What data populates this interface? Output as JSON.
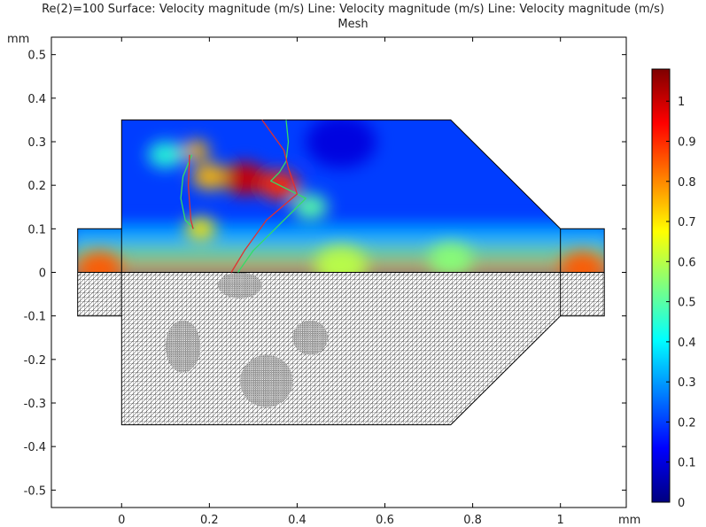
{
  "chart_data": {
    "type": "heatmap",
    "title_line1": "Re(2)=100 Surface: Velocity magnitude (m/s)  Line: Velocity magnitude (m/s)  Line: Velocity magnitude (m/s)",
    "title_line2": "Mesh",
    "x_unit": "mm",
    "y_unit": "mm",
    "xlim": [
      -0.16,
      1.15
    ],
    "ylim": [
      -0.54,
      0.54
    ],
    "x_ticks": [
      0,
      0.2,
      0.4,
      0.6,
      0.8,
      1
    ],
    "x_tick_labels": [
      "0",
      "0.2",
      "0.4",
      "0.6",
      "0.8",
      "1"
    ],
    "y_ticks": [
      -0.5,
      -0.4,
      -0.3,
      -0.2,
      -0.1,
      0,
      0.1,
      0.2,
      0.3,
      0.4,
      0.5
    ],
    "y_tick_labels": [
      "-0.5",
      "-0.4",
      "-0.3",
      "-0.2",
      "-0.1",
      "0",
      "0.1",
      "0.2",
      "0.3",
      "0.4",
      "0.5"
    ],
    "colorbar": {
      "min": 0,
      "max": 1.08,
      "ticks": [
        0,
        0.1,
        0.2,
        0.3,
        0.4,
        0.5,
        0.6,
        0.7,
        0.8,
        0.9,
        1
      ],
      "tick_labels": [
        "0",
        "0.1",
        "0.2",
        "0.3",
        "0.4",
        "0.5",
        "0.6",
        "0.7",
        "0.8",
        "0.9",
        "1"
      ],
      "colormap": [
        "#00007f",
        "#0000ff",
        "#007fff",
        "#00ffff",
        "#7fff7f",
        "#ffff00",
        "#ff7f00",
        "#ff0000",
        "#7f0000"
      ]
    },
    "domain_outline_upper": [
      [
        -0.1,
        0
      ],
      [
        -0.1,
        0.1
      ],
      [
        0,
        0.1
      ],
      [
        0,
        0.35
      ],
      [
        0.75,
        0.35
      ],
      [
        1,
        0.1
      ],
      [
        1.1,
        0.1
      ],
      [
        1.1,
        0
      ]
    ],
    "domain_outline_lower": [
      [
        -0.1,
        0
      ],
      [
        -0.1,
        -0.1
      ],
      [
        0,
        -0.1
      ],
      [
        0,
        -0.35
      ],
      [
        0.75,
        -0.35
      ],
      [
        1,
        -0.1
      ],
      [
        1.1,
        -0.1
      ],
      [
        1.1,
        0
      ]
    ],
    "inlet_boundary_x": 0,
    "outlet_boundary_x": 1,
    "flap_lines": [
      {
        "name": "",
        "color": "#33dd66",
        "points": [
          [
            0.16,
            0.27
          ],
          [
            0.14,
            0.22
          ],
          [
            0.135,
            0.17
          ],
          [
            0.145,
            0.12
          ],
          [
            0.165,
            0.1
          ]
        ]
      },
      {
        "name": "",
        "color": "#e03030",
        "points": [
          [
            0.155,
            0.27
          ],
          [
            0.152,
            0.2
          ],
          [
            0.158,
            0.12
          ],
          [
            0.163,
            0.1
          ]
        ]
      },
      {
        "name": "",
        "color": "#33dd66",
        "points": [
          [
            0.375,
            0.35
          ],
          [
            0.38,
            0.3
          ],
          [
            0.375,
            0.255
          ],
          [
            0.36,
            0.23
          ],
          [
            0.34,
            0.21
          ],
          [
            0.42,
            0.17
          ],
          [
            0.35,
            0.1
          ],
          [
            0.3,
            0.05
          ],
          [
            0.265,
            0
          ]
        ]
      },
      {
        "name": "",
        "color": "#e03030",
        "points": [
          [
            0.32,
            0.35
          ],
          [
            0.37,
            0.28
          ],
          [
            0.38,
            0.24
          ],
          [
            0.4,
            0.18
          ],
          [
            0.33,
            0.12
          ],
          [
            0.28,
            0.05
          ],
          [
            0.25,
            0
          ]
        ]
      }
    ],
    "field_features": [
      {
        "x": -0.05,
        "y": 0.01,
        "v": 0.85,
        "r": 0.05
      },
      {
        "x": 1.05,
        "y": 0.01,
        "v": 0.85,
        "r": 0.05
      },
      {
        "x": 0.5,
        "y": 0.015,
        "v": 0.6,
        "r": 0.06
      },
      {
        "x": 0.75,
        "y": 0.03,
        "v": 0.55,
        "r": 0.05
      },
      {
        "x": 0.28,
        "y": 0.215,
        "v": 1.0,
        "r": 0.05
      },
      {
        "x": 0.36,
        "y": 0.2,
        "v": 0.9,
        "r": 0.045
      },
      {
        "x": 0.2,
        "y": 0.22,
        "v": 0.75,
        "r": 0.04
      },
      {
        "x": 0.1,
        "y": 0.27,
        "v": 0.45,
        "r": 0.04
      },
      {
        "x": 0.18,
        "y": 0.1,
        "v": 0.7,
        "r": 0.035
      },
      {
        "x": 0.17,
        "y": 0.28,
        "v": 0.75,
        "r": 0.03
      },
      {
        "x": 0.43,
        "y": 0.15,
        "v": 0.5,
        "r": 0.04
      },
      {
        "x": 0.5,
        "y": 0.3,
        "v": 0.1,
        "r": 0.08
      }
    ],
    "mesh_refinement_regions": [
      {
        "x": 0.14,
        "y": -0.17,
        "rx": 0.04,
        "ry": 0.06
      },
      {
        "x": 0.27,
        "y": -0.03,
        "rx": 0.05,
        "ry": 0.03
      },
      {
        "x": 0.33,
        "y": -0.25,
        "rx": 0.06,
        "ry": 0.06
      },
      {
        "x": 0.43,
        "y": -0.15,
        "rx": 0.04,
        "ry": 0.04
      }
    ]
  }
}
